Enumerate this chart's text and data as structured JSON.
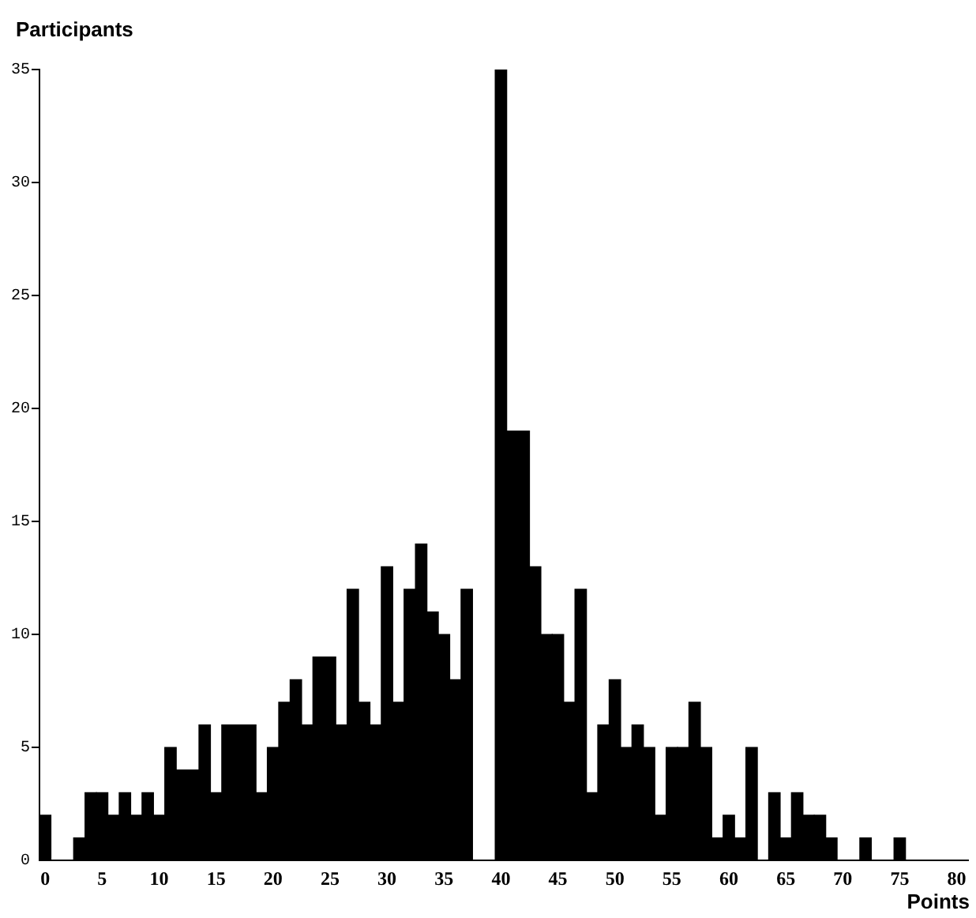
{
  "chart_data": {
    "type": "histogram",
    "xlabel": "Points",
    "ylabel": "Participants",
    "bins": [
      -0.5,
      0.5,
      1.5,
      2.5,
      3.5,
      4.5,
      5.5,
      6.5,
      7.5,
      8.5,
      9.5,
      10.5,
      11.5,
      12.5,
      13.5,
      14.5,
      15.5,
      16.5,
      17.5,
      18.5,
      19.5,
      20.5,
      21.5,
      22.5,
      23.5,
      24.5,
      25.5,
      26.5,
      27.5,
      28.5,
      29.5,
      30.5,
      31.5,
      32.5,
      33.5,
      34.5,
      35.5,
      36.5,
      37.5,
      38.5,
      39.5,
      40.5,
      41.5,
      42.5,
      43.5,
      44.5,
      45.5,
      46.5,
      47.5,
      48.5,
      49.5,
      50.5,
      51.5,
      52.5,
      53.5,
      54.5,
      55.5,
      56.5,
      57.5,
      58.5,
      59.5,
      60.5,
      61.5,
      62.5,
      63.5,
      64.5,
      65.5,
      66.5,
      67.5,
      68.5,
      69.5,
      70.5,
      71.5,
      72.5,
      73.5,
      74.5,
      75.5
    ],
    "values": [
      2,
      0,
      0,
      1,
      3,
      3,
      2,
      3,
      2,
      3,
      2,
      5,
      4,
      4,
      6,
      3,
      6,
      6,
      6,
      3,
      5,
      7,
      8,
      6,
      9,
      9,
      6,
      12,
      7,
      6,
      13,
      7,
      12,
      14,
      11,
      10,
      8,
      12,
      0,
      0,
      35,
      19,
      19,
      13,
      10,
      10,
      7,
      12,
      3,
      6,
      8,
      5,
      6,
      5,
      2,
      5,
      5,
      7,
      5,
      1,
      2,
      1,
      5,
      0,
      3,
      1,
      3,
      2,
      2,
      1,
      0,
      0,
      1,
      0,
      0,
      1
    ],
    "color": "#000000",
    "xlim": [
      -0.5,
      81
    ],
    "xticks": [
      0,
      5,
      10,
      15,
      20,
      25,
      30,
      35,
      40,
      45,
      50,
      55,
      60,
      65,
      70,
      75,
      80
    ],
    "ylim": [
      0,
      35
    ],
    "yticks": [
      0,
      5,
      10,
      15,
      20,
      25,
      30,
      35
    ],
    "grid": false,
    "legend": false
  }
}
